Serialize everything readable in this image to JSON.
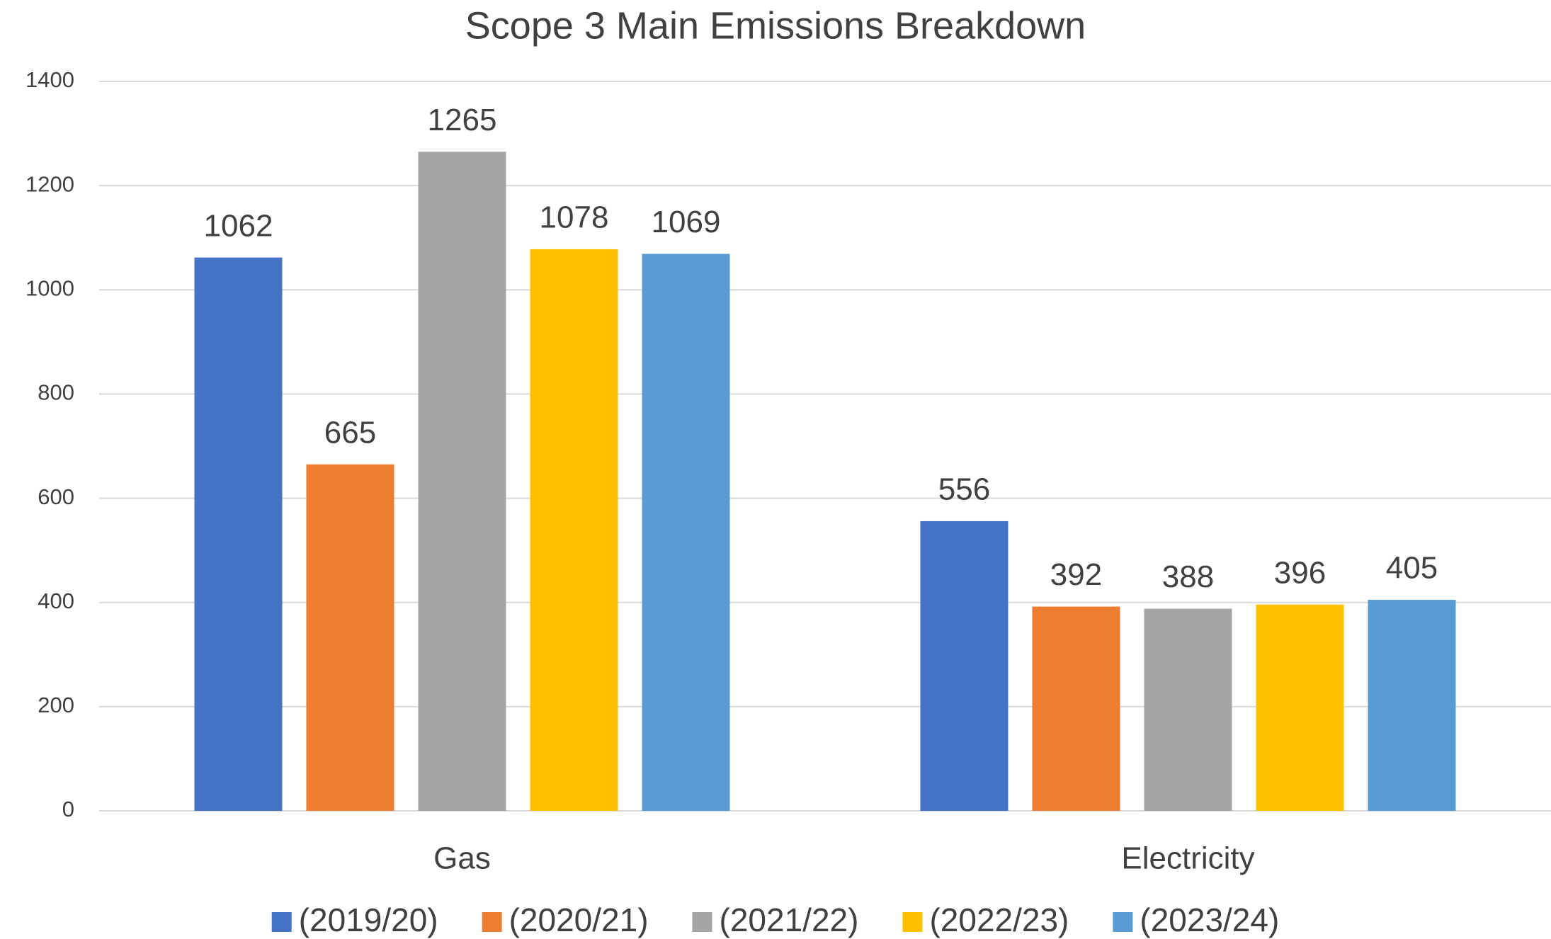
{
  "chart_data": {
    "type": "bar",
    "title": "Scope 3 Main Emissions Breakdown",
    "categories": [
      "Gas",
      "Electricity"
    ],
    "series": [
      {
        "name": "(2019/20)",
        "color": "#4472c4",
        "values": [
          1062,
          556
        ]
      },
      {
        "name": "(2020/21)",
        "color": "#ed7d31",
        "values": [
          665,
          392
        ]
      },
      {
        "name": "(2021/22)",
        "color": "#a5a5a5",
        "values": [
          1265,
          388
        ]
      },
      {
        "name": "(2022/23)",
        "color": "#ffc000",
        "values": [
          1078,
          396
        ]
      },
      {
        "name": "(2023/24)",
        "color": "#5b9bd5",
        "values": [
          1069,
          405
        ]
      }
    ],
    "ylim": [
      0,
      1400
    ],
    "yticks": [
      0,
      200,
      400,
      600,
      800,
      1000,
      1200,
      1400
    ],
    "grid": true,
    "legend": "bottom"
  }
}
